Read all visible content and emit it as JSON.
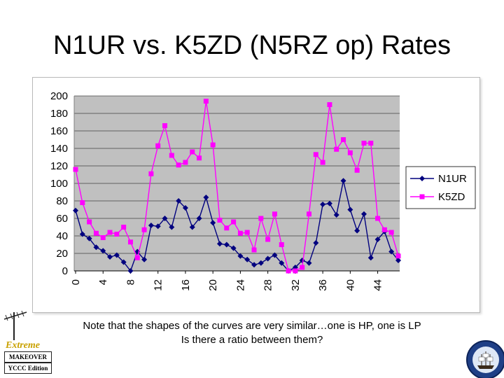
{
  "slide": {
    "title": "N1UR vs. K5ZD (N5RZ op) Rates",
    "note_line1": "Note that the shapes of the curves are very similar…one is HP, one is LP",
    "note_line2": "Is there a ratio between them?"
  },
  "logo": {
    "word": "Extreme",
    "line1": "MAKEOVER",
    "line2": "YCCC Edition"
  },
  "colors": {
    "plot_bg": "#c0c0c0",
    "n1ur": "#00007f",
    "k5zd": "#ff00ff"
  },
  "chart_data": {
    "type": "line",
    "title": "",
    "xlabel": "",
    "ylabel": "",
    "ylim": [
      0,
      200
    ],
    "yticks": [
      "0",
      "20",
      "40",
      "60",
      "80",
      "100",
      "120",
      "140",
      "160",
      "180",
      "200"
    ],
    "xtick_labels": [
      "0",
      "4",
      "8",
      "12",
      "16",
      "20",
      "24",
      "28",
      "32",
      "36",
      "40",
      "44"
    ],
    "xtick_indices": [
      0,
      4,
      8,
      12,
      16,
      20,
      24,
      28,
      32,
      36,
      40,
      44
    ],
    "n_points": 48,
    "grid": true,
    "legend": "right",
    "series": [
      {
        "name": "N1UR",
        "marker": "diamond",
        "values": [
          69,
          42,
          37,
          27,
          23,
          16,
          18,
          10,
          0,
          22,
          13,
          52,
          51,
          60,
          50,
          80,
          72,
          50,
          60,
          84,
          55,
          31,
          30,
          26,
          17,
          13,
          7,
          9,
          14,
          18,
          9,
          0,
          4,
          12,
          9,
          32,
          76,
          77,
          64,
          103,
          70,
          46,
          65,
          15,
          36,
          45,
          22,
          12
        ]
      },
      {
        "name": "K5ZD",
        "marker": "square",
        "values": [
          116,
          78,
          56,
          43,
          38,
          44,
          42,
          50,
          33,
          15,
          47,
          111,
          143,
          166,
          132,
          121,
          124,
          136,
          129,
          194,
          144,
          58,
          49,
          56,
          43,
          44,
          24,
          60,
          36,
          65,
          30,
          0,
          0,
          4,
          65,
          133,
          124,
          190,
          139,
          150,
          135,
          115,
          146,
          146,
          60,
          47,
          44,
          17
        ]
      }
    ]
  }
}
